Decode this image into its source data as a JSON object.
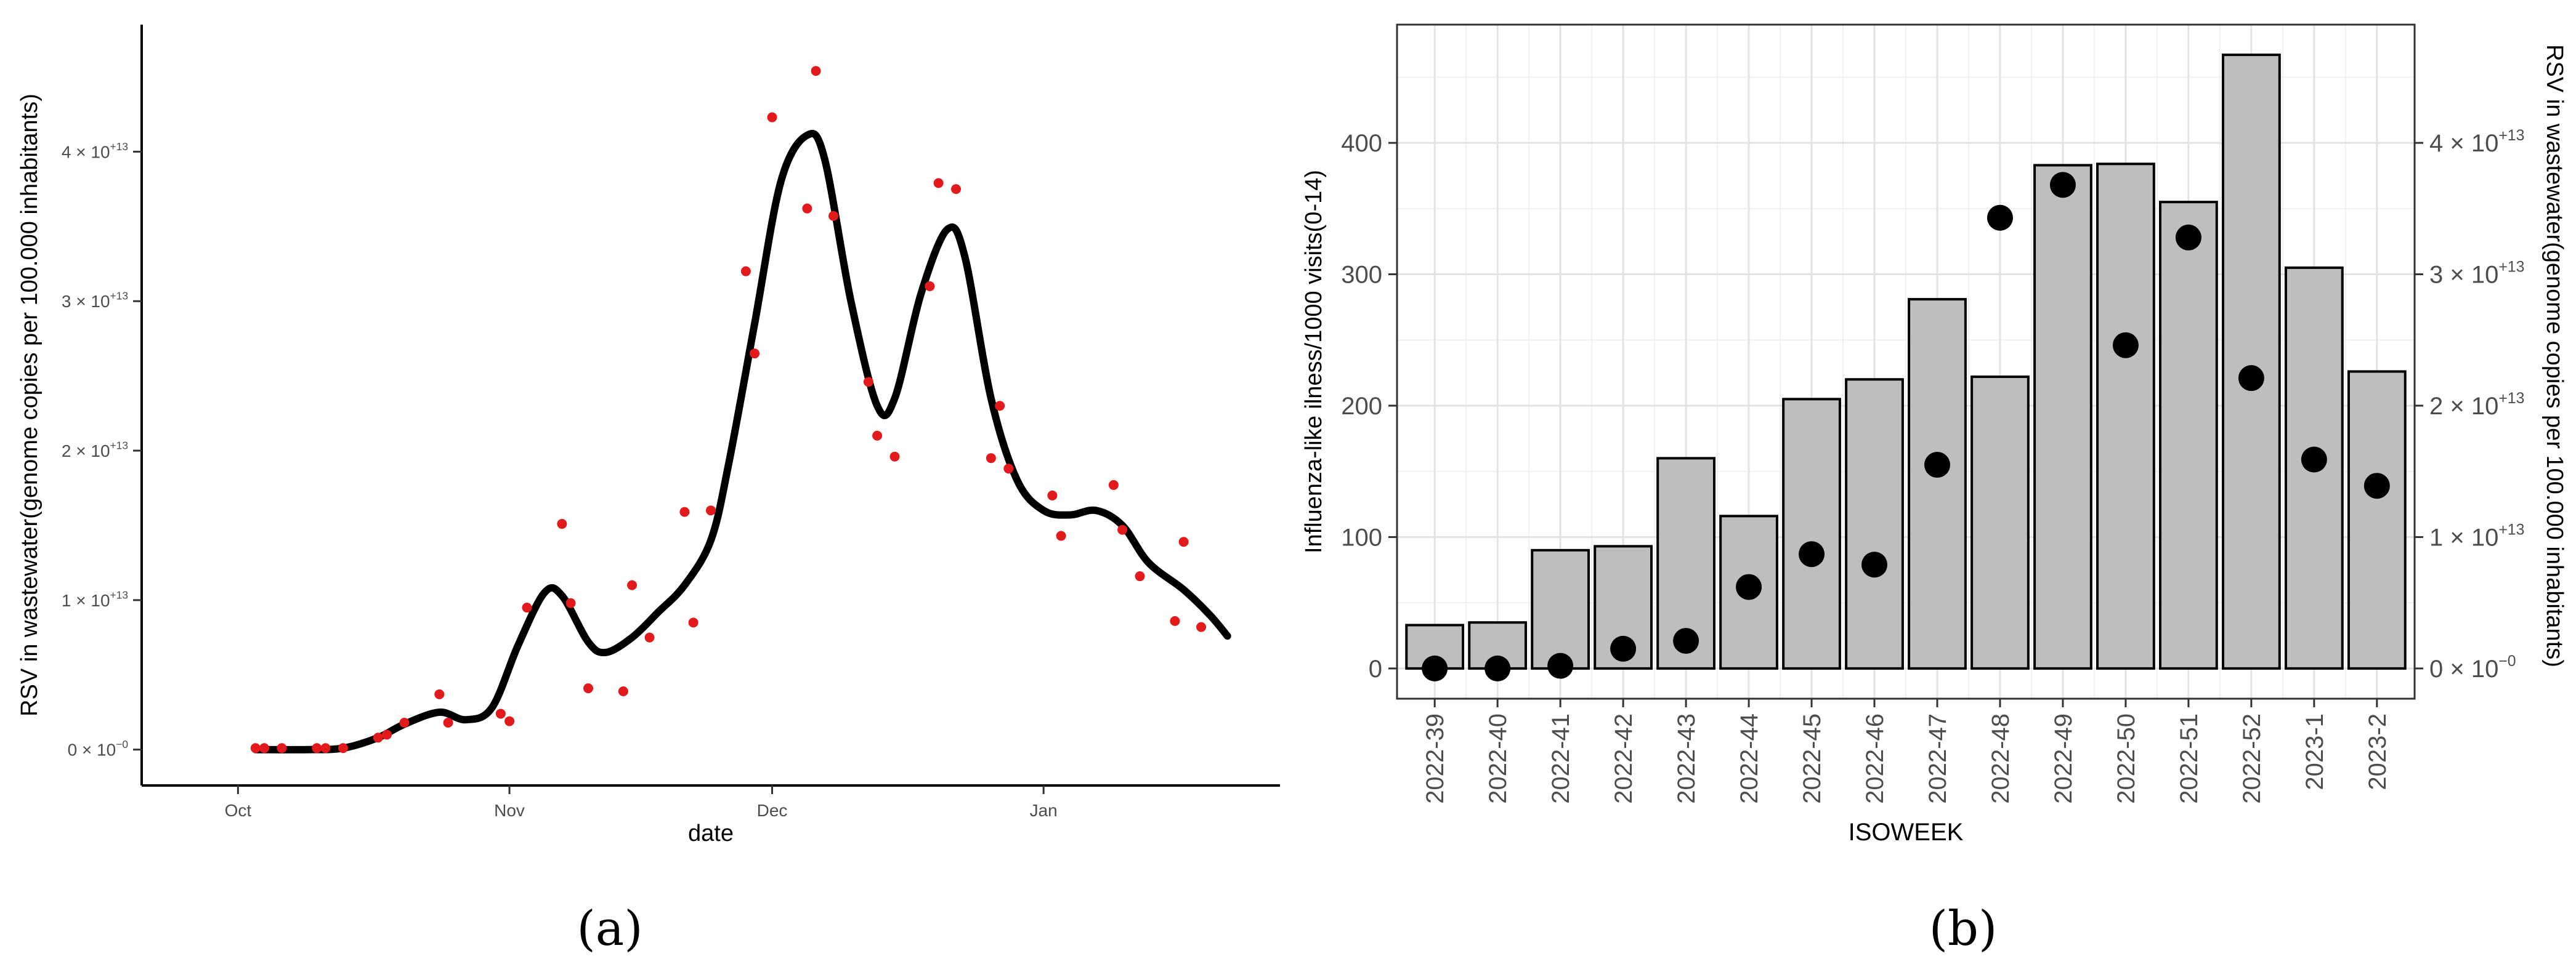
{
  "captions": {
    "a": "(a)",
    "b": "(b)"
  },
  "chart_data": [
    {
      "panel": "a",
      "type": "scatter",
      "title": "",
      "xlabel": "date",
      "ylabel": "RSV in wastewater(genome copies per 100.000 inhabitants)",
      "x_ticks": [
        "Oct",
        "Nov",
        "Dec",
        "Jan"
      ],
      "x_tick_dates": [
        "2022-10-01",
        "2022-11-01",
        "2022-12-01",
        "2023-01-01"
      ],
      "y_ticks": [
        0,
        10000000000000.0,
        20000000000000.0,
        30000000000000.0,
        40000000000000.0
      ],
      "y_tick_labels": [
        {
          "base": "0 × 10",
          "exp": "−0"
        },
        {
          "base": "1 × 10",
          "exp": "+13"
        },
        {
          "base": "2 × 10",
          "exp": "+13"
        },
        {
          "base": "3 × 10",
          "exp": "+13"
        },
        {
          "base": "4 × 10",
          "exp": "+13"
        }
      ],
      "xlim": [
        "2022-09-20",
        "2023-01-28"
      ],
      "ylim": [
        -2400000000000.0,
        48500000000000.0
      ],
      "grid": false,
      "point_color": "#e31a1c",
      "line_color": "#000000",
      "points": [
        {
          "x": "2022-10-03",
          "y": 100000000000.0
        },
        {
          "x": "2022-10-04",
          "y": 100000000000.0
        },
        {
          "x": "2022-10-06",
          "y": 100000000000.0
        },
        {
          "x": "2022-10-10",
          "y": 100000000000.0
        },
        {
          "x": "2022-10-11",
          "y": 100000000000.0
        },
        {
          "x": "2022-10-13",
          "y": 100000000000.0
        },
        {
          "x": "2022-10-17",
          "y": 800000000000.0
        },
        {
          "x": "2022-10-18",
          "y": 1000000000000.0
        },
        {
          "x": "2022-10-20",
          "y": 1800000000000.0
        },
        {
          "x": "2022-10-24",
          "y": 3700000000000.0
        },
        {
          "x": "2022-10-25",
          "y": 1800000000000.0
        },
        {
          "x": "2022-10-31",
          "y": 2400000000000.0
        },
        {
          "x": "2022-11-01",
          "y": 1900000000000.0
        },
        {
          "x": "2022-11-03",
          "y": 9500000000000.0
        },
        {
          "x": "2022-11-07",
          "y": 15100000000000.0
        },
        {
          "x": "2022-11-08",
          "y": 9800000000000.0
        },
        {
          "x": "2022-11-10",
          "y": 4100000000000.0
        },
        {
          "x": "2022-11-14",
          "y": 3900000000000.0
        },
        {
          "x": "2022-11-15",
          "y": 11000000000000.0
        },
        {
          "x": "2022-11-17",
          "y": 7500000000000.0
        },
        {
          "x": "2022-11-21",
          "y": 15900000000000.0
        },
        {
          "x": "2022-11-22",
          "y": 8500000000000.0
        },
        {
          "x": "2022-11-24",
          "y": 16000000000000.0
        },
        {
          "x": "2022-11-28",
          "y": 32000000000000.0
        },
        {
          "x": "2022-11-29",
          "y": 26500000000000.0
        },
        {
          "x": "2022-12-01",
          "y": 42300000000000.0
        },
        {
          "x": "2022-12-05",
          "y": 36200000000000.0
        },
        {
          "x": "2022-12-06",
          "y": 45400000000000.0
        },
        {
          "x": "2022-12-08",
          "y": 35700000000000.0
        },
        {
          "x": "2022-12-12",
          "y": 24600000000000.0
        },
        {
          "x": "2022-12-13",
          "y": 21000000000000.0
        },
        {
          "x": "2022-12-15",
          "y": 19600000000000.0
        },
        {
          "x": "2022-12-19",
          "y": 31000000000000.0
        },
        {
          "x": "2022-12-20",
          "y": 37900000000000.0
        },
        {
          "x": "2022-12-22",
          "y": 37500000000000.0
        },
        {
          "x": "2022-12-26",
          "y": 19500000000000.0
        },
        {
          "x": "2022-12-27",
          "y": 23000000000000.0
        },
        {
          "x": "2022-12-28",
          "y": 18800000000000.0
        },
        {
          "x": "2023-01-02",
          "y": 17000000000000.0
        },
        {
          "x": "2023-01-03",
          "y": 14300000000000.0
        },
        {
          "x": "2023-01-09",
          "y": 17700000000000.0
        },
        {
          "x": "2023-01-10",
          "y": 14700000000000.0
        },
        {
          "x": "2023-01-12",
          "y": 11600000000000.0
        },
        {
          "x": "2023-01-16",
          "y": 8600000000000.0
        },
        {
          "x": "2023-01-17",
          "y": 13900000000000.0
        },
        {
          "x": "2023-01-19",
          "y": 8200000000000.0
        }
      ],
      "smooth_line": [
        {
          "x": "2022-10-03",
          "y": 0.0
        },
        {
          "x": "2022-10-09",
          "y": 0.0
        },
        {
          "x": "2022-10-13",
          "y": 100000000000.0
        },
        {
          "x": "2022-10-17",
          "y": 800000000000.0
        },
        {
          "x": "2022-10-20",
          "y": 1700000000000.0
        },
        {
          "x": "2022-10-24",
          "y": 2500000000000.0
        },
        {
          "x": "2022-10-27",
          "y": 2000000000000.0
        },
        {
          "x": "2022-10-30",
          "y": 2800000000000.0
        },
        {
          "x": "2022-11-02",
          "y": 7000000000000.0
        },
        {
          "x": "2022-11-05",
          "y": 10500000000000.0
        },
        {
          "x": "2022-11-07",
          "y": 10300000000000.0
        },
        {
          "x": "2022-11-10",
          "y": 7200000000000.0
        },
        {
          "x": "2022-11-12",
          "y": 6500000000000.0
        },
        {
          "x": "2022-11-15",
          "y": 7500000000000.0
        },
        {
          "x": "2022-11-18",
          "y": 9200000000000.0
        },
        {
          "x": "2022-11-21",
          "y": 11000000000000.0
        },
        {
          "x": "2022-11-24",
          "y": 14000000000000.0
        },
        {
          "x": "2022-11-26",
          "y": 19000000000000.0
        },
        {
          "x": "2022-11-29",
          "y": 28500000000000.0
        },
        {
          "x": "2022-12-02",
          "y": 38000000000000.0
        },
        {
          "x": "2022-12-05",
          "y": 41100000000000.0
        },
        {
          "x": "2022-12-07",
          "y": 39500000000000.0
        },
        {
          "x": "2022-12-10",
          "y": 30000000000000.0
        },
        {
          "x": "2022-12-13",
          "y": 23000000000000.0
        },
        {
          "x": "2022-12-15",
          "y": 23500000000000.0
        },
        {
          "x": "2022-12-18",
          "y": 30500000000000.0
        },
        {
          "x": "2022-12-21",
          "y": 34800000000000.0
        },
        {
          "x": "2022-12-23",
          "y": 33000000000000.0
        },
        {
          "x": "2022-12-26",
          "y": 23500000000000.0
        },
        {
          "x": "2022-12-29",
          "y": 18000000000000.0
        },
        {
          "x": "2023-01-01",
          "y": 16000000000000.0
        },
        {
          "x": "2023-01-04",
          "y": 15700000000000.0
        },
        {
          "x": "2023-01-07",
          "y": 16000000000000.0
        },
        {
          "x": "2023-01-10",
          "y": 15000000000000.0
        },
        {
          "x": "2023-01-13",
          "y": 12500000000000.0
        },
        {
          "x": "2023-01-17",
          "y": 10700000000000.0
        },
        {
          "x": "2023-01-20",
          "y": 9000000000000.0
        },
        {
          "x": "2023-01-22",
          "y": 7600000000000.0
        }
      ]
    },
    {
      "panel": "b",
      "type": "bar",
      "title": "",
      "xlabel": "ISOWEEK",
      "ylabel": "Influenza-like ilness/1000 visits(0-14)",
      "ylabel_right": "RSV in wastewater(genome copies per 100.000 inhabitants)",
      "categories": [
        "2022-39",
        "2022-40",
        "2022-41",
        "2022-42",
        "2022-43",
        "2022-44",
        "2022-45",
        "2022-46",
        "2022-47",
        "2022-48",
        "2022-49",
        "2022-50",
        "2022-51",
        "2022-52",
        "2023-1",
        "2023-2"
      ],
      "ylim": [
        -23,
        490
      ],
      "y_ticks": [
        0,
        100,
        200,
        300,
        400
      ],
      "y_ticks_right": [
        0,
        10000000000000.0,
        20000000000000.0,
        30000000000000.0,
        40000000000000.0
      ],
      "y_tick_labels_right": [
        {
          "base": "0 × 10",
          "exp": "−0"
        },
        {
          "base": "1 × 10",
          "exp": "+13"
        },
        {
          "base": "2 × 10",
          "exp": "+13"
        },
        {
          "base": "3 × 10",
          "exp": "+13"
        },
        {
          "base": "4 × 10",
          "exp": "+13"
        }
      ],
      "right_axis_per_left_unit": 100000000000.0,
      "grid": true,
      "bar_color": "#bebebe",
      "bar_edge_color": "#000000",
      "point_color": "#000000",
      "series": [
        {
          "axis": "left",
          "kind": "bar",
          "values": [
            33,
            35,
            90,
            93,
            160,
            116,
            205,
            220,
            281,
            222,
            383,
            384,
            355,
            467,
            305,
            226
          ]
        },
        {
          "axis": "right",
          "kind": "point",
          "values": [
            0.0,
            0.0,
            200000000000.0,
            1500000000000.0,
            2100000000000.0,
            6200000000000.0,
            8700000000000.0,
            7900000000000.0,
            15500000000000.0,
            34300000000000.0,
            36800000000000.0,
            24600000000000.0,
            32800000000000.0,
            22100000000000.0,
            15900000000000.0,
            13900000000000.0
          ]
        }
      ]
    }
  ]
}
